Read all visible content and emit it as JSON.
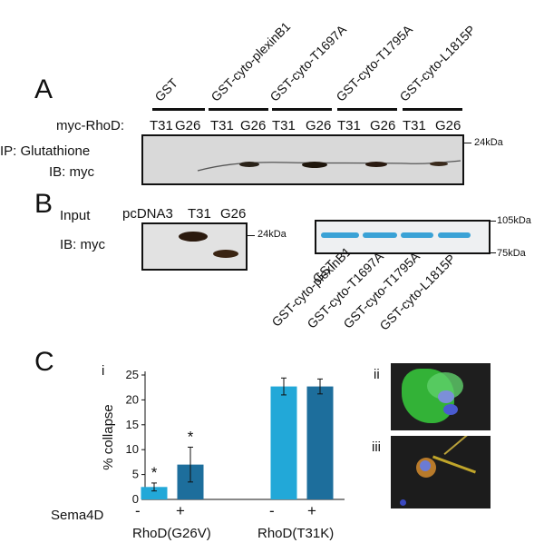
{
  "panelA": {
    "letter": "A",
    "groups": [
      "GST",
      "GST-cyto-plexinB1",
      "GST-cyto-T1697A",
      "GST-cyto-T1795A",
      "GST-cyto-L1815P"
    ],
    "row_label": "myc-RhoD:",
    "lanes": [
      "T31",
      "G26",
      "T31",
      "G26",
      "T31",
      "G26",
      "T31",
      "G26",
      "T31",
      "G26"
    ],
    "ip_label": "IP: Glutathione",
    "ib_label": "IB: myc",
    "marker": "24kDa"
  },
  "panelB": {
    "letter": "B",
    "input_label": "Input",
    "ib_label": "IB: myc",
    "lanes": [
      "pcDNA3",
      "T31",
      "G26"
    ],
    "marker": "24kDa",
    "markers_right": [
      "105kDa",
      "75kDa"
    ],
    "rot_labels": [
      "GST",
      "GST-cyto-plexinB1",
      "GST-cyto-T1697A",
      "GST-cyto-T1795A",
      "GST-cyto-L1815P"
    ]
  },
  "panelC": {
    "letter": "C",
    "sub_i": "i",
    "sub_ii": "ii",
    "sub_iii": "iii",
    "sema_label": "Sema4D",
    "signs": [
      "-",
      "+",
      "-",
      "+"
    ],
    "groups": [
      "RhoD(G26V)",
      "RhoD(T31K)"
    ],
    "asterisk": "*"
  },
  "chart_data": {
    "type": "bar",
    "ylabel": "% collapse",
    "ylim": [
      0,
      25
    ],
    "yticks": [
      0,
      5,
      10,
      15,
      20,
      25
    ],
    "categories": [
      "RhoD(G26V) -",
      "RhoD(G26V) +",
      "RhoD(T31K) -",
      "RhoD(T31K) +"
    ],
    "values": [
      2.5,
      7,
      22.7,
      22.7
    ],
    "errors": [
      0.8,
      3.5,
      1.7,
      1.5
    ],
    "significant": [
      true,
      true,
      false,
      false
    ],
    "colors": [
      "#22a8d8",
      "#1d6e9c",
      "#22a8d8",
      "#1d6e9c"
    ],
    "grid": false
  }
}
